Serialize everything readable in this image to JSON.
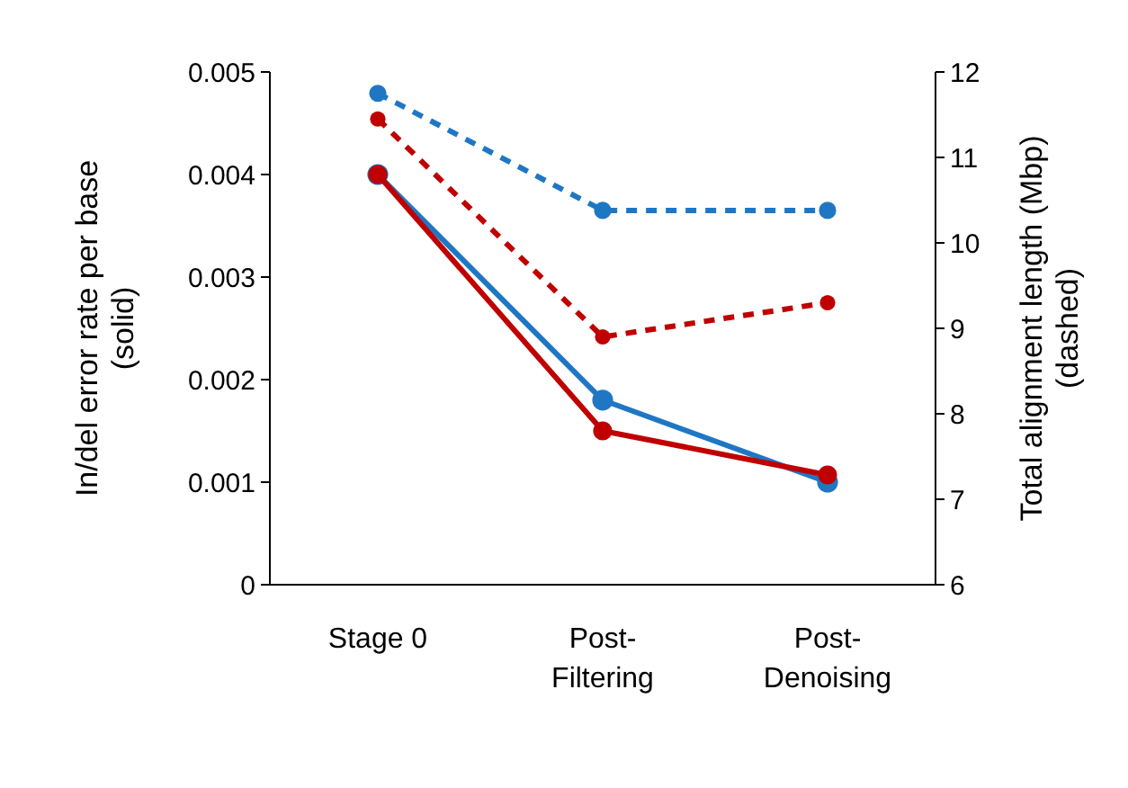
{
  "chart_data": {
    "type": "line",
    "ylabel": "In/del error rate per base\n(solid)",
    "y2label": "Total alignment length (Mbp)\n(dashed)",
    "categories": [
      "Stage 0",
      "Post-\nFiltering",
      "Post-\nDenoising"
    ],
    "ylim": [
      0,
      0.005
    ],
    "yticks": [
      0,
      0.001,
      0.002,
      0.003,
      0.004,
      0.005
    ],
    "y2lim": [
      6,
      12
    ],
    "y2ticks": [
      6,
      7,
      8,
      9,
      10,
      11,
      12
    ],
    "marker": "circle",
    "grid": false,
    "series": [
      {
        "color": "#1f77c4",
        "values": [
          0.004,
          0.0018,
          0.001
        ],
        "line_style": "solid"
      },
      {
        "color": "#c00000",
        "values": [
          0.004,
          0.0015,
          0.00107
        ],
        "line_style": "solid"
      },
      {
        "color": "#1f77c4",
        "values": [
          11.75,
          10.38,
          10.38
        ],
        "axis": "y2",
        "line_style": "dashed"
      },
      {
        "color": "#c00000",
        "values": [
          11.45,
          8.9,
          9.3
        ],
        "axis": "y2",
        "line_style": "dashed"
      }
    ]
  }
}
